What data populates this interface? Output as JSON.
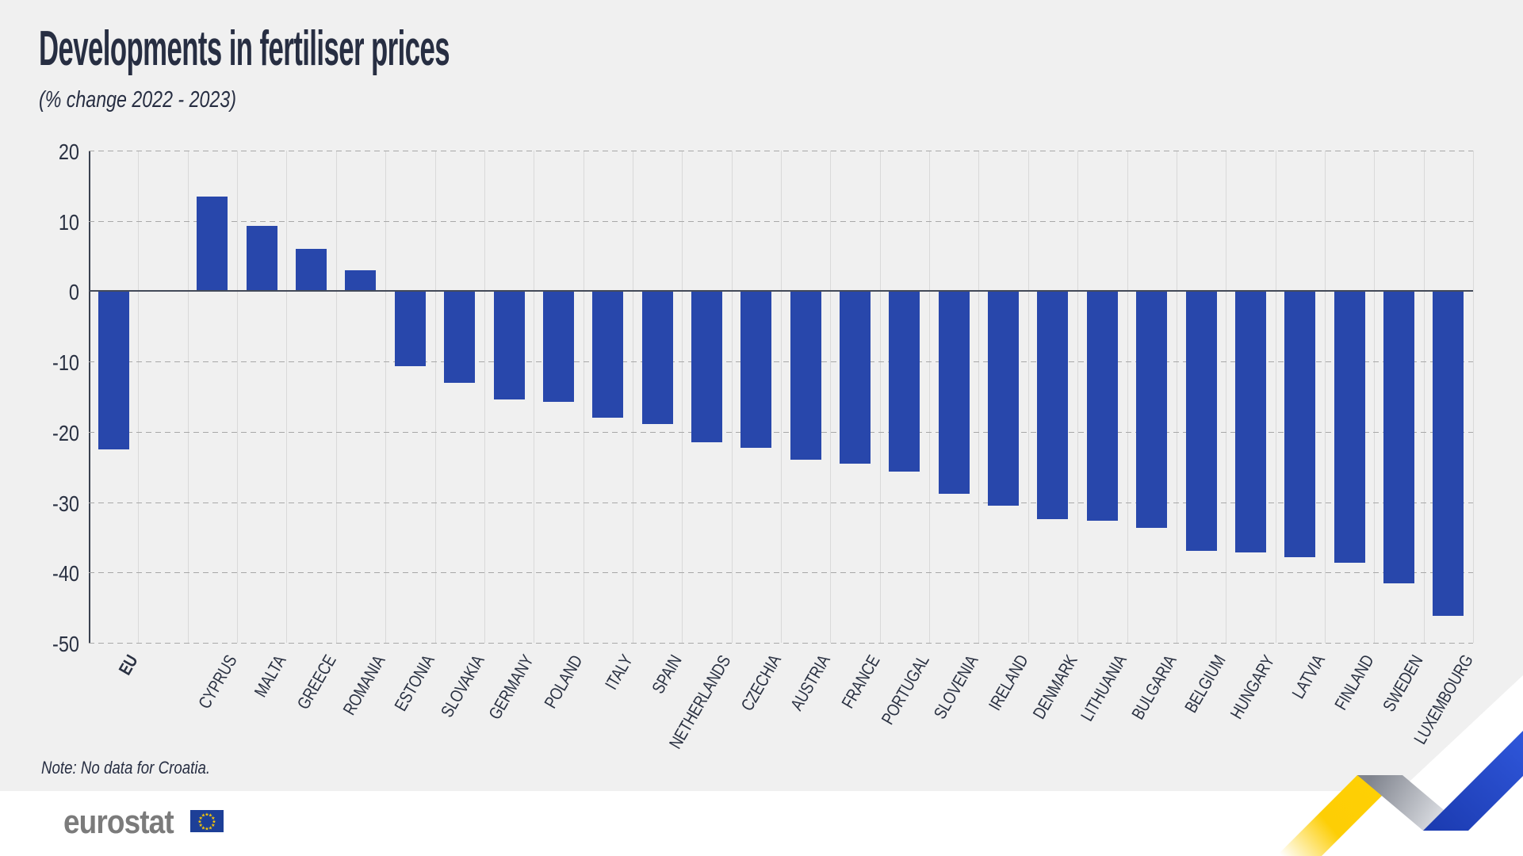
{
  "header": {
    "title": "Developments in fertiliser prices",
    "subtitle": "(% change 2022 - 2023)"
  },
  "note": "Note: No data for Croatia.",
  "logo": {
    "text": "eurostat"
  },
  "colors": {
    "bar": "#2847ab",
    "background_panel": "#f0f0f0",
    "text_dark": "#272e42",
    "axis_line": "#3a4150",
    "zero_line": "#434a59",
    "grid_vertical": "#d9d9d9",
    "grid_dashed": "#a8a8a8",
    "logo_gray": "#7b7b7b",
    "flag_blue": "#1d3f97",
    "star_yellow": "#ffcc00",
    "ribbon_yellow": "#ffd004",
    "ribbon_blue": "#2750d2"
  },
  "chart_data": {
    "type": "bar",
    "title": "Developments in fertiliser prices",
    "subtitle": "(% change 2022 - 2023)",
    "ylabel": "% change",
    "ylim": [
      -50,
      20
    ],
    "yticks": [
      20,
      10,
      0,
      -10,
      -20,
      -30,
      -40,
      -50
    ],
    "grid": "horizontal dashed on, vertical light column separators on",
    "legend": "none",
    "eu_separator_gap": true,
    "categories": [
      "EU",
      "CYPRUS",
      "MALTA",
      "GREECE",
      "ROMANIA",
      "ESTONIA",
      "SLOVAKIA",
      "GERMANY",
      "POLAND",
      "ITALY",
      "SPAIN",
      "NETHERLANDS",
      "CZECHIA",
      "AUSTRIA",
      "FRANCE",
      "PORTUGAL",
      "SLOVENIA",
      "IRELAND",
      "DENMARK",
      "LITHUANIA",
      "BULGARIA",
      "BELGIUM",
      "HUNGARY",
      "LATVIA",
      "FINLAND",
      "SWEDEN",
      "LUXEMBOURG"
    ],
    "values": [
      -22.5,
      13.5,
      9.3,
      6.0,
      3.0,
      -10.7,
      -13.0,
      -15.4,
      -15.7,
      -18.0,
      -18.9,
      -21.5,
      -22.3,
      -24.0,
      -24.5,
      -25.6,
      -28.8,
      -30.5,
      -32.4,
      -32.6,
      -33.6,
      -36.9,
      -37.1,
      -37.8,
      -38.6,
      -41.5,
      -46.2
    ]
  }
}
